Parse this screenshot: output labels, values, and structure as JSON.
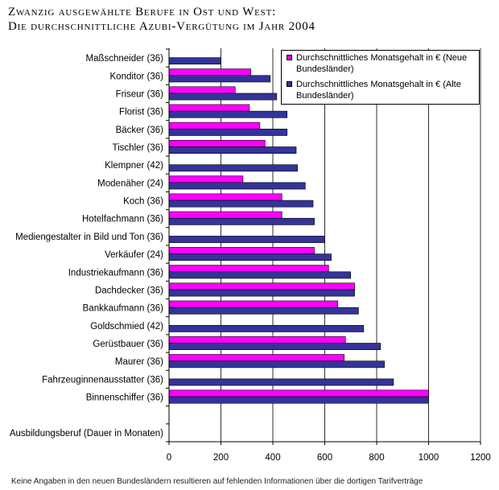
{
  "chart_data": {
    "type": "bar",
    "title": [
      "Zwanzig ausgewählte Berufe in Ost und West:",
      "Die durchschnittliche Azubi-Vergütung im Jahr 2004"
    ],
    "categories": [
      "Maßschneider (36)",
      "Konditor (36)",
      "Friseur (36)",
      "Florist (36)",
      "Bäcker (36)",
      "Tischler (36)",
      "Klempner (42)",
      "Modenäher (24)",
      "Koch (36)",
      "Hotelfachmann (36)",
      "Mediengestalter in Bild und Ton (36)",
      "Verkäufer (24)",
      "Industriekaufmann (36)",
      "Dachdecker (36)",
      "Bankkaufmann (36)",
      "Goldschmied (42)",
      "Gerüstbauer (36)",
      "Maurer (36)",
      "Fahrzeuginnenausstatter (36)",
      "Binnenschiffer (36)"
    ],
    "series": [
      {
        "name": "Durchschnittliches Monatsgehalt in € (Neue Bundesländer)",
        "color": "#ff00ff",
        "values": [
          null,
          315,
          255,
          310,
          350,
          370,
          null,
          285,
          435,
          435,
          null,
          560,
          615,
          715,
          650,
          null,
          680,
          675,
          null,
          1000
        ]
      },
      {
        "name": "Durchschnittliches Monatsgehalt in € (Alte Bundesländer)",
        "color": "#333399",
        "values": [
          200,
          390,
          415,
          455,
          455,
          490,
          495,
          525,
          555,
          560,
          600,
          625,
          700,
          715,
          730,
          750,
          815,
          830,
          865,
          1000
        ]
      }
    ],
    "ylabel": "Ausbildungsberuf (Dauer in Monaten)",
    "xlim": [
      0,
      1200
    ],
    "xticks": [
      0,
      200,
      400,
      600,
      800,
      1000,
      1200
    ],
    "grid": true,
    "legend": "top-right",
    "note": "Keine Angaben in den neuen Bundesländern resultieren auf fehlenden Informationen über die dortigen Tarifverträge"
  }
}
